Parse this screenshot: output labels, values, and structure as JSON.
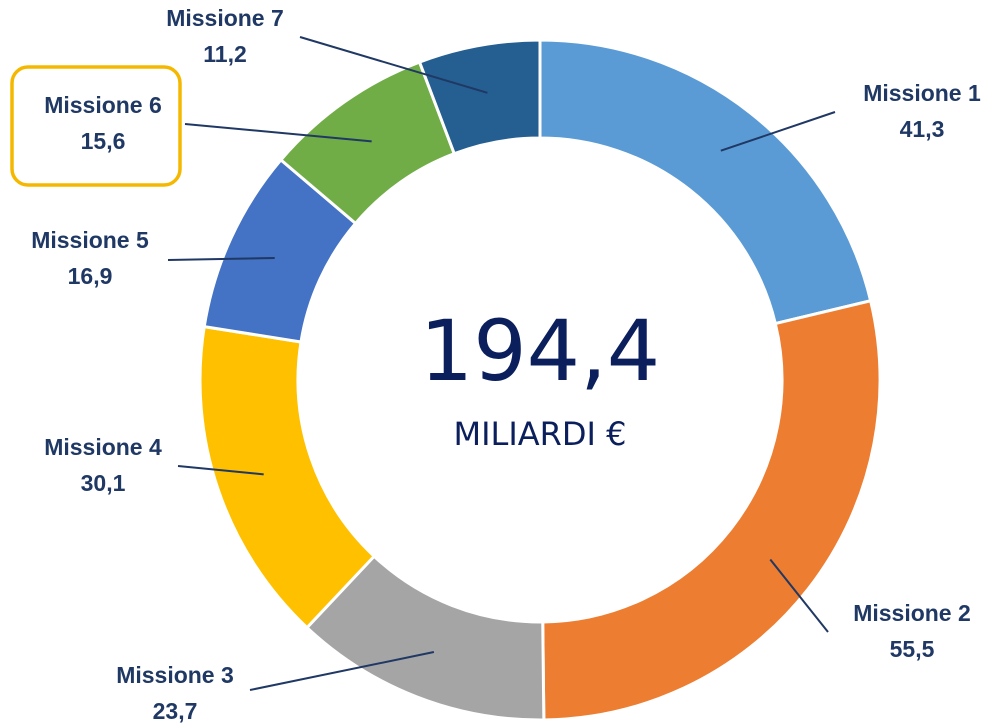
{
  "chart_data": {
    "type": "donut",
    "categories": [
      "Missione 1",
      "Missione 2",
      "Missione 3",
      "Missione 4",
      "Missione 5",
      "Missione 6",
      "Missione 7"
    ],
    "values": [
      41.3,
      55.5,
      23.7,
      30.1,
      16.9,
      15.6,
      11.2
    ],
    "value_labels": [
      "41,3",
      "55,5",
      "23,7",
      "30,1",
      "16,9",
      "15,6",
      "11,2"
    ],
    "colors": [
      "#5b9bd5",
      "#ed7d31",
      "#a5a5a5",
      "#ffc000",
      "#4472c4",
      "#70ad47",
      "#255e91"
    ],
    "center_text": "194,4",
    "center_subtext": "MILIARDI €"
  }
}
